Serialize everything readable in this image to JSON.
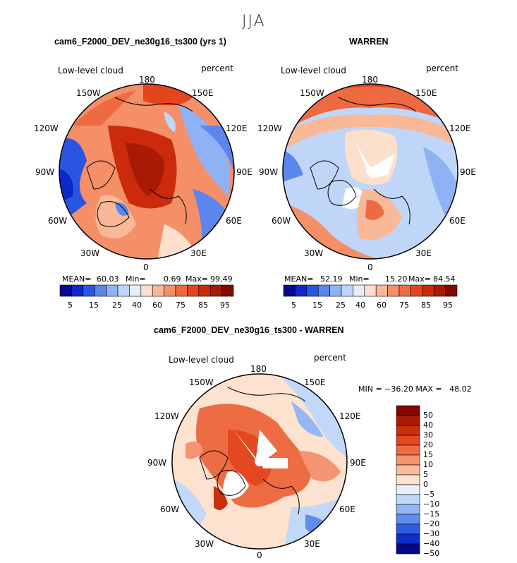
{
  "main_title": "JJA",
  "panels": [
    {
      "title": "cam6_F2000_DEV_ne30g16_ts300 (yrs 1)",
      "variable": "Low-level cloud",
      "units": "percent",
      "lon_labels": [
        "180",
        "150W",
        "150E",
        "120W",
        "120E",
        "90W",
        "90E",
        "60W",
        "60E",
        "30W",
        "30E",
        "0"
      ],
      "stats": {
        "mean_label": "MEAN=",
        "mean": "60.03",
        "min_label": "Min=",
        "min": "0.69",
        "max_label": "Max=",
        "max": "99.49"
      },
      "colorbar_ticks": [
        "5",
        "15",
        "25",
        "40",
        "60",
        "75",
        "85",
        "95"
      ]
    },
    {
      "title": "WARREN",
      "variable": "Low-level cloud",
      "units": "percent",
      "lon_labels": [
        "180",
        "150W",
        "150E",
        "120W",
        "120E",
        "90W",
        "90E",
        "60W",
        "60E",
        "30W",
        "30E",
        "0"
      ],
      "stats": {
        "mean_label": "MEAN=",
        "mean": "52.19",
        "min_label": "Min=",
        "min": "15.20",
        "max_label": "Max=",
        "max": "84.54"
      },
      "colorbar_ticks": [
        "5",
        "15",
        "25",
        "40",
        "60",
        "75",
        "85",
        "95"
      ]
    },
    {
      "title": "cam6_F2000_DEV_ne30g16_ts300 - WARREN",
      "variable": "Low-level cloud",
      "units": "percent",
      "lon_labels": [
        "180",
        "150W",
        "150E",
        "120W",
        "120E",
        "90W",
        "90E",
        "60W",
        "60E",
        "30W",
        "30E",
        "0"
      ],
      "minmax": "MIN = −36.20 MAX =   48.02",
      "colorbar_ticks": [
        "50",
        "40",
        "30",
        "20",
        "15",
        "10",
        "5",
        "0",
        "−5",
        "−10",
        "−15",
        "−20",
        "−30",
        "−40",
        "−50"
      ]
    }
  ],
  "colors": {
    "abs_scale": [
      "#08088a",
      "#0d28c8",
      "#2a55e0",
      "#5a86ee",
      "#8fb2f4",
      "#c0d6f8",
      "#e6eefa",
      "#fde0cc",
      "#f9b898",
      "#f48f68",
      "#ee6a42",
      "#e4441e",
      "#cc2a0c",
      "#a81a06",
      "#800800"
    ],
    "diff_scale": [
      "#800800",
      "#aa1a06",
      "#cc2e0c",
      "#e44820",
      "#ee6c44",
      "#f49470",
      "#f9bc9c",
      "#fde2cf",
      "#e8f0fb",
      "#c2d8f8",
      "#94b6f4",
      "#608cee",
      "#2e5ce2",
      "#0e2ecc",
      "#08088a"
    ]
  }
}
